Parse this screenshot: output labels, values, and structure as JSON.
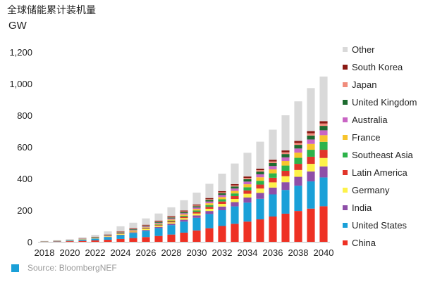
{
  "header": {
    "title": "全球储能累计装机量",
    "unit": "GW"
  },
  "source": {
    "label": "Source: BloombergNEF",
    "swatch_color": "#1aa0d8"
  },
  "chart_data": {
    "type": "bar",
    "stacked": true,
    "title": "全球储能累计装机量",
    "ylabel": "GW",
    "ylim": [
      0,
      1200
    ],
    "yticks": [
      0,
      200,
      400,
      600,
      800,
      1000,
      1200
    ],
    "ytick_labels": [
      "0",
      "200",
      "400",
      "600",
      "800",
      "1,000",
      "1,200"
    ],
    "grid": false,
    "legend_position": "right",
    "categories": [
      "2018",
      "2019",
      "2020",
      "2021",
      "2022",
      "2023",
      "2024",
      "2025",
      "2026",
      "2027",
      "2028",
      "2029",
      "2030",
      "2031",
      "2032",
      "2033",
      "2034",
      "2035",
      "2036",
      "2037",
      "2038",
      "2039",
      "2040"
    ],
    "xtick_labels": [
      "2018",
      "",
      "2020",
      "",
      "2022",
      "",
      "2024",
      "",
      "2026",
      "",
      "2028",
      "",
      "2030",
      "",
      "2032",
      "",
      "2034",
      "",
      "2036",
      "",
      "2038",
      "",
      "2040"
    ],
    "series": [
      {
        "name": "China",
        "color": "#ee3124",
        "values": [
          1,
          2,
          4,
          6,
          9,
          13,
          18,
          24,
          30,
          37,
          46,
          58,
          72,
          86,
          100,
          114,
          128,
          142,
          160,
          178,
          195,
          210,
          225
        ]
      },
      {
        "name": "United States",
        "color": "#1aa0d8",
        "values": [
          1,
          2,
          4,
          7,
          11,
          17,
          24,
          32,
          40,
          50,
          60,
          70,
          80,
          90,
          100,
          110,
          120,
          130,
          140,
          150,
          160,
          172,
          182
        ]
      },
      {
        "name": "India",
        "color": "#8e4fa8",
        "values": [
          0,
          0,
          0,
          1,
          1,
          2,
          3,
          4,
          5,
          7,
          9,
          12,
          15,
          19,
          23,
          27,
          32,
          37,
          43,
          49,
          56,
          63,
          70
        ]
      },
      {
        "name": "Germany",
        "color": "#fdf24a",
        "values": [
          1,
          1,
          1,
          2,
          2,
          3,
          4,
          5,
          6,
          7,
          8,
          10,
          12,
          14,
          17,
          20,
          24,
          28,
          33,
          38,
          43,
          48,
          53
        ]
      },
      {
        "name": "Latin America",
        "color": "#e1352a",
        "values": [
          0,
          0,
          0,
          0,
          1,
          1,
          2,
          3,
          4,
          5,
          6,
          8,
          10,
          12,
          15,
          18,
          21,
          25,
          29,
          34,
          39,
          45,
          52
        ]
      },
      {
        "name": "Southeast Asia",
        "color": "#2db34a",
        "values": [
          0,
          0,
          0,
          0,
          1,
          1,
          2,
          2,
          3,
          4,
          5,
          7,
          9,
          11,
          14,
          17,
          20,
          24,
          28,
          33,
          38,
          44,
          50
        ]
      },
      {
        "name": "France",
        "color": "#f7c42c",
        "values": [
          0,
          0,
          0,
          0,
          1,
          1,
          2,
          3,
          4,
          5,
          7,
          8,
          10,
          12,
          14,
          16,
          19,
          22,
          25,
          29,
          33,
          37,
          42
        ]
      },
      {
        "name": "Australia",
        "color": "#c965c4",
        "values": [
          0,
          0,
          0,
          1,
          1,
          2,
          3,
          4,
          5,
          6,
          7,
          8,
          9,
          11,
          13,
          15,
          17,
          19,
          21,
          23,
          26,
          28,
          31
        ]
      },
      {
        "name": "United Kingdom",
        "color": "#1d6b2f",
        "values": [
          0,
          1,
          1,
          1,
          2,
          2,
          3,
          3,
          4,
          5,
          6,
          7,
          8,
          10,
          11,
          13,
          15,
          17,
          19,
          21,
          23,
          25,
          28
        ]
      },
      {
        "name": "Japan",
        "color": "#f08c7c",
        "values": [
          0,
          0,
          0,
          1,
          1,
          1,
          2,
          2,
          3,
          3,
          4,
          4,
          5,
          5,
          6,
          7,
          8,
          9,
          10,
          11,
          12,
          14,
          15
        ]
      },
      {
        "name": "South Korea",
        "color": "#8b1a14",
        "values": [
          1,
          1,
          1,
          2,
          2,
          3,
          3,
          4,
          4,
          5,
          5,
          6,
          6,
          7,
          8,
          8,
          9,
          10,
          11,
          12,
          13,
          14,
          15
        ]
      },
      {
        "name": "Other",
        "color": "#d9d9d9",
        "values": [
          2,
          3,
          5,
          8,
          12,
          20,
          32,
          35,
          40,
          45,
          55,
          65,
          75,
          90,
          110,
          130,
          150,
          170,
          190,
          222,
          250,
          272,
          282
        ]
      }
    ]
  }
}
